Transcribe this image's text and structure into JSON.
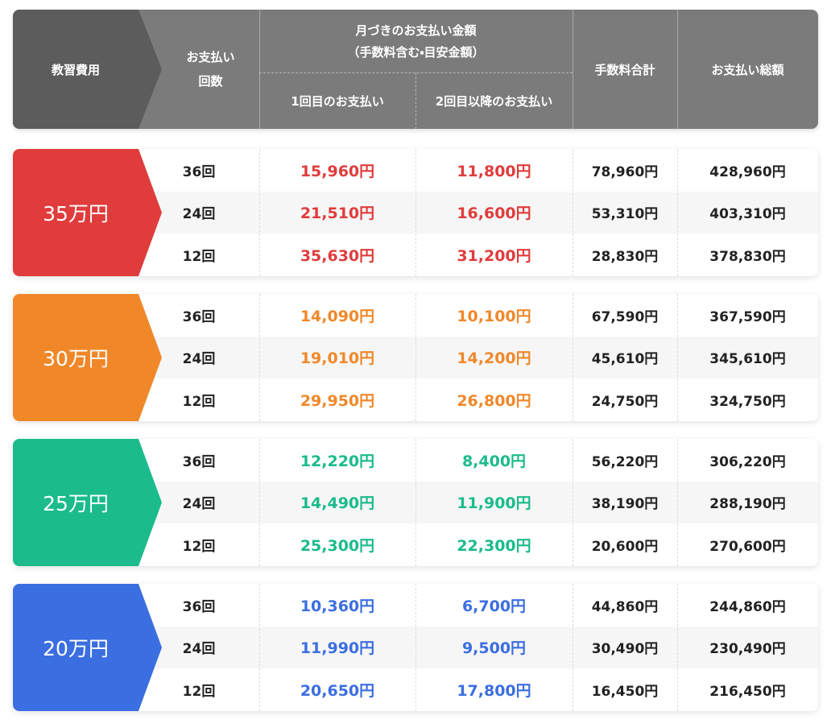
{
  "header": {
    "cost": "教習費用",
    "count": "お支払い回数",
    "monthly": "月づきのお支払い金額",
    "monthly_note": "（手数料含む・目安金額）",
    "first": "1回目のお支払い",
    "later": "2回目以降のお支払い",
    "fee": "手数料合計",
    "total": "お支払い総額"
  },
  "groups": [
    {
      "label": "35万円",
      "color": "#e03c3c",
      "rows": [
        [
          "36回",
          "15,960円",
          "11,800円",
          "78,960円",
          "428,960円"
        ],
        [
          "24回",
          "21,510円",
          "16,600円",
          "53,310円",
          "403,310円"
        ],
        [
          "12回",
          "35,630円",
          "31,200円",
          "28,830円",
          "378,830円"
        ]
      ]
    },
    {
      "label": "30万円",
      "color": "#f0882a",
      "rows": [
        [
          "36回",
          "14,090円",
          "10,100円",
          "67,590円",
          "367,590円"
        ],
        [
          "24回",
          "19,010円",
          "14,200円",
          "45,610円",
          "345,610円"
        ],
        [
          "12回",
          "29,950円",
          "26,800円",
          "24,750円",
          "324,750円"
        ]
      ]
    },
    {
      "label": "25万円",
      "color": "#1bbb8c",
      "rows": [
        [
          "36回",
          "12,220円",
          "8,400円",
          "56,220円",
          "306,220円"
        ],
        [
          "24回",
          "14,490円",
          "11,900円",
          "38,190円",
          "288,190円"
        ],
        [
          "12回",
          "25,300円",
          "22,300円",
          "20,600円",
          "270,600円"
        ]
      ]
    },
    {
      "label": "20万円",
      "color": "#3b6ee0",
      "rows": [
        [
          "36回",
          "10,360円",
          "6,700円",
          "44,860円",
          "244,860円"
        ],
        [
          "24回",
          "11,990円",
          "9,500円",
          "30,490円",
          "230,490円"
        ],
        [
          "12回",
          "20,650円",
          "17,800円",
          "16,450円",
          "216,450円"
        ]
      ]
    }
  ]
}
